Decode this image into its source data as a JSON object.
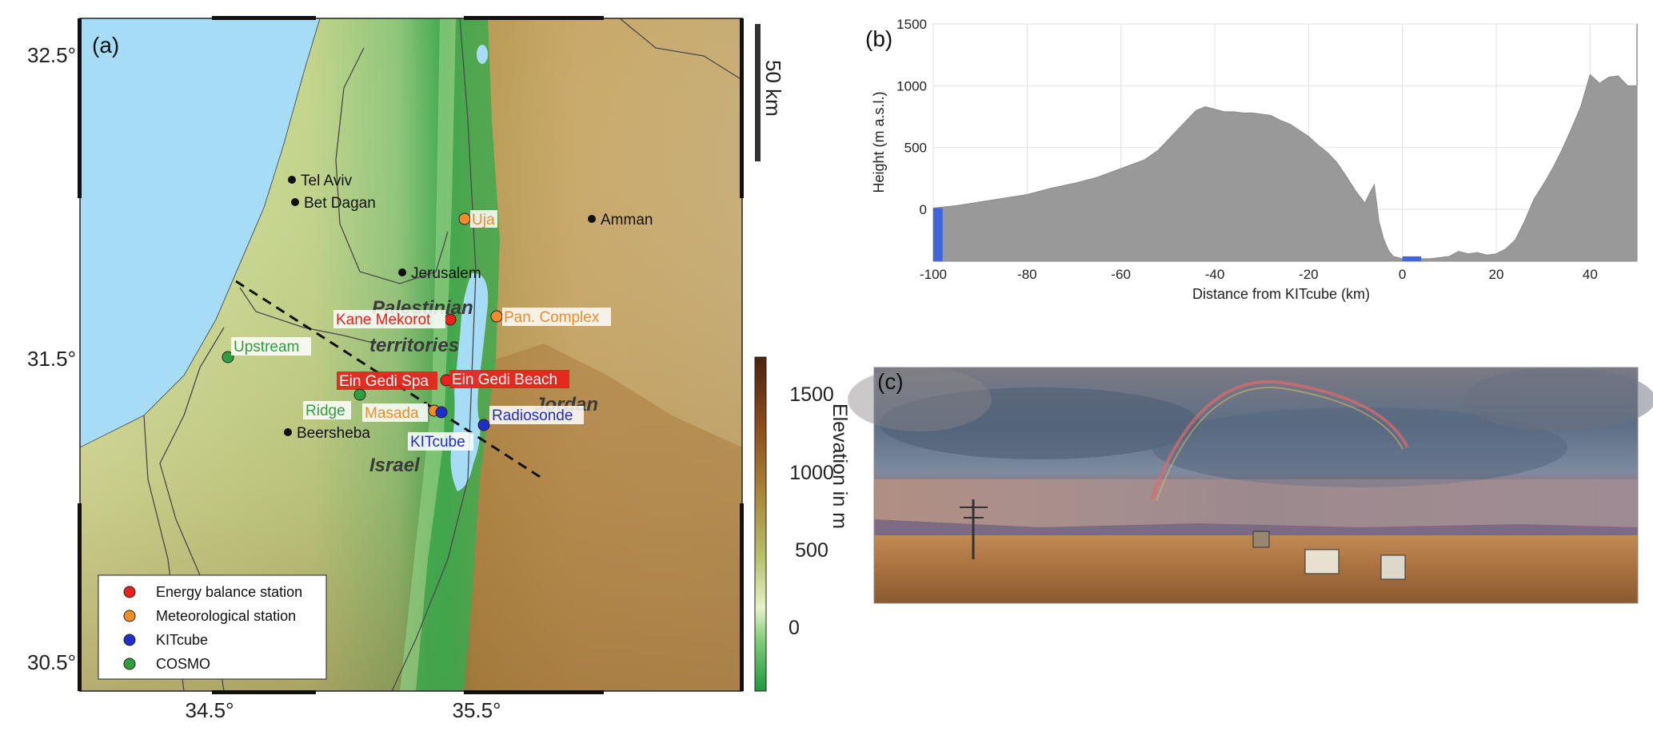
{
  "panel_a": {
    "letter": "(a)",
    "lat_ticks": [
      {
        "value": 32.5,
        "label": "32.5°"
      },
      {
        "value": 31.5,
        "label": "31.5°"
      },
      {
        "value": 30.5,
        "label": "30.5°"
      }
    ],
    "lon_ticks": [
      {
        "value": 34.5,
        "label": "34.5°"
      },
      {
        "value": 35.5,
        "label": "35.5°"
      }
    ],
    "scale_bar": "50 km",
    "cities": [
      {
        "name": "Tel Aviv"
      },
      {
        "name": "Bet Dagan"
      },
      {
        "name": "Jerusalem"
      },
      {
        "name": "Amman"
      },
      {
        "name": "Beersheba"
      }
    ],
    "regions": [
      {
        "name": "Palestinian"
      },
      {
        "name": "territories"
      },
      {
        "name": "Jordan"
      },
      {
        "name": "Israel"
      }
    ],
    "stations": [
      {
        "name": "Uja",
        "type": "Meteorological station"
      },
      {
        "name": "Kane Mekorot",
        "type": "Energy balance station"
      },
      {
        "name": "Pan. Complex",
        "type": "Meteorological station"
      },
      {
        "name": "Upstream",
        "type": "COSMO"
      },
      {
        "name": "Ein Gedi Spa",
        "type": "Energy balance station"
      },
      {
        "name": "Ein Gedi Beach",
        "type": "Energy balance station"
      },
      {
        "name": "Ridge",
        "type": "COSMO"
      },
      {
        "name": "Masada",
        "type": "Meteorological station"
      },
      {
        "name": "KITcube",
        "type": "KITcube"
      },
      {
        "name": "Radiosonde",
        "type": "KITcube"
      }
    ],
    "legend": [
      {
        "label": "Energy balance station",
        "color": "#e8211b"
      },
      {
        "label": "Meteorological station",
        "color": "#f28c28"
      },
      {
        "label": "KITcube",
        "color": "#1f2ec9"
      },
      {
        "label": "COSMO",
        "color": "#2e9e3e"
      }
    ],
    "colorbar": {
      "label": "Elevation in m",
      "ticks": [
        {
          "value": 1500,
          "label": "1500"
        },
        {
          "value": 1000,
          "label": "1000"
        },
        {
          "value": 500,
          "label": "500"
        },
        {
          "value": 0,
          "label": "0"
        }
      ],
      "range": [
        -420,
        1750
      ]
    }
  },
  "panel_b": {
    "letter": "(b)"
  },
  "panel_c": {
    "letter": "(c)"
  },
  "chart_data": {
    "type": "area",
    "xlabel": "Distance from KITcube (km)",
    "ylabel": "Height (m a.s.l.)",
    "xlim": [
      -100,
      50
    ],
    "ylim": [
      -420,
      1500
    ],
    "x_ticks": [
      -100,
      -80,
      -60,
      -40,
      -20,
      0,
      20,
      40
    ],
    "y_ticks": [
      0,
      500,
      1000,
      1500
    ],
    "grid": true,
    "series": [
      {
        "x": [
          -100,
          -95,
          -90,
          -85,
          -80,
          -75,
          -70,
          -65,
          -60,
          -55,
          -52,
          -50,
          -48,
          -46,
          -44,
          -42,
          -40,
          -38,
          -36,
          -34,
          -32,
          -30,
          -28,
          -26,
          -24,
          -22,
          -20,
          -18,
          -16,
          -14,
          -12,
          -10,
          -8,
          -7,
          -6,
          -5,
          -4,
          -3,
          -2,
          0,
          2,
          4,
          6,
          8,
          10,
          12,
          14,
          16,
          18,
          20,
          22,
          24,
          26,
          28,
          30,
          32,
          34,
          36,
          38,
          40,
          42,
          44,
          46,
          48,
          50
        ],
        "y": [
          10,
          30,
          60,
          90,
          120,
          170,
          210,
          260,
          330,
          400,
          480,
          560,
          640,
          720,
          800,
          830,
          810,
          790,
          790,
          780,
          780,
          770,
          760,
          720,
          690,
          640,
          590,
          520,
          460,
          380,
          270,
          150,
          50,
          130,
          200,
          -100,
          -240,
          -330,
          -380,
          -400,
          -400,
          -400,
          -400,
          -390,
          -380,
          -340,
          -360,
          -350,
          -370,
          -360,
          -320,
          -250,
          -100,
          80,
          200,
          330,
          480,
          650,
          830,
          1090,
          1020,
          1070,
          1080,
          1000,
          1000
        ],
        "color": "#999999"
      }
    ],
    "water_segments": [
      [
        -100,
        -98
      ],
      [
        0,
        4
      ]
    ],
    "water_color": "#3f66dd"
  }
}
